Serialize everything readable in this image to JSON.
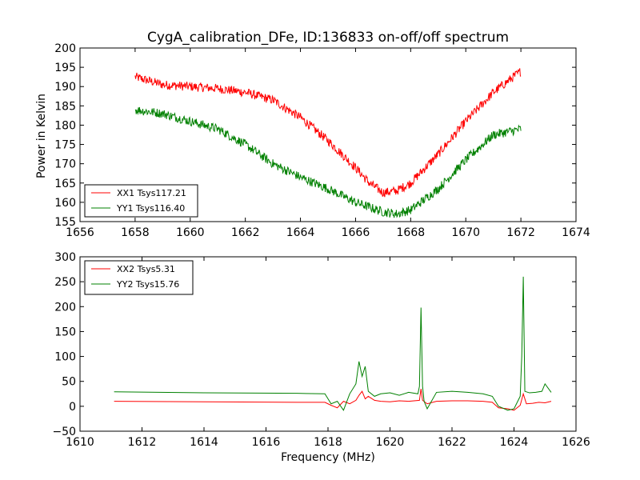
{
  "chart_data": [
    {
      "type": "line",
      "title": "CygA_calibration_DFe, ID:136833 on-off/off spectrum",
      "xlabel": "",
      "ylabel": "Power in Kelvin",
      "xlim": [
        1656,
        1674
      ],
      "ylim": [
        155,
        200
      ],
      "xticks": [
        1656,
        1658,
        1660,
        1662,
        1664,
        1666,
        1668,
        1670,
        1672,
        1674
      ],
      "yticks": [
        155,
        160,
        165,
        170,
        175,
        180,
        185,
        190,
        195,
        200
      ],
      "legend_position": "lower-left",
      "grid": false,
      "noise": 1.0,
      "series": [
        {
          "name": "XX1 Tsys117.21",
          "color": "#ff0000",
          "x": [
            1658.0,
            1659.0,
            1660.0,
            1661.0,
            1662.0,
            1663.0,
            1664.0,
            1665.0,
            1666.0,
            1666.5,
            1667.0,
            1667.5,
            1668.0,
            1669.0,
            1670.0,
            1671.0,
            1672.0
          ],
          "y": [
            192.5,
            190.5,
            190.0,
            189.5,
            188.5,
            186.5,
            182.0,
            176.0,
            169.0,
            165.0,
            162.5,
            163.0,
            165.0,
            172.5,
            181.0,
            188.5,
            194.0
          ]
        },
        {
          "name": "YY1 Tsys116.40",
          "color": "#008000",
          "x": [
            1658.0,
            1659.0,
            1660.0,
            1661.0,
            1662.0,
            1663.0,
            1664.0,
            1665.0,
            1666.0,
            1667.0,
            1667.5,
            1668.0,
            1669.0,
            1670.0,
            1671.0,
            1672.0
          ],
          "y": [
            184.0,
            183.0,
            181.0,
            179.0,
            175.0,
            170.0,
            166.5,
            163.5,
            160.0,
            157.5,
            157.0,
            158.0,
            163.5,
            171.0,
            177.5,
            179.0
          ]
        }
      ]
    },
    {
      "type": "line",
      "title": "",
      "xlabel": "Frequency (MHz)",
      "ylabel": "",
      "xlim": [
        1610,
        1626
      ],
      "ylim": [
        -50,
        300
      ],
      "xticks": [
        1610,
        1612,
        1614,
        1616,
        1618,
        1620,
        1622,
        1624,
        1626
      ],
      "yticks": [
        -50,
        0,
        50,
        100,
        150,
        200,
        250,
        300
      ],
      "legend_position": "upper-left",
      "grid": false,
      "series": [
        {
          "name": "XX2 Tsys5.31",
          "color": "#ff0000",
          "x": [
            1611.1,
            1614.0,
            1617.0,
            1617.9,
            1618.1,
            1618.3,
            1618.5,
            1618.7,
            1618.9,
            1619.0,
            1619.1,
            1619.2,
            1619.3,
            1619.5,
            1619.7,
            1620.0,
            1620.3,
            1620.6,
            1620.95,
            1621.0,
            1621.05,
            1621.2,
            1621.5,
            1622.0,
            1622.5,
            1623.0,
            1623.3,
            1623.5,
            1623.8,
            1624.0,
            1624.2,
            1624.3,
            1624.4,
            1624.6,
            1624.8,
            1625.0,
            1625.2
          ],
          "y": [
            10,
            9,
            8,
            8,
            2,
            -3,
            10,
            5,
            12,
            22,
            30,
            15,
            20,
            12,
            10,
            9,
            11,
            10,
            12,
            35,
            12,
            5,
            10,
            11,
            11,
            10,
            8,
            -3,
            -5,
            -8,
            2,
            25,
            5,
            6,
            8,
            7,
            10
          ]
        },
        {
          "name": "YY2 Tsys15.76",
          "color": "#008000",
          "x": [
            1611.1,
            1614.0,
            1617.0,
            1617.9,
            1618.0,
            1618.1,
            1618.3,
            1618.5,
            1618.7,
            1618.9,
            1619.0,
            1619.1,
            1619.2,
            1619.3,
            1619.5,
            1619.7,
            1620.0,
            1620.3,
            1620.6,
            1620.9,
            1620.95,
            1621.0,
            1621.05,
            1621.1,
            1621.2,
            1621.5,
            1622.0,
            1622.5,
            1623.0,
            1623.3,
            1623.5,
            1623.8,
            1624.0,
            1624.2,
            1624.25,
            1624.3,
            1624.35,
            1624.5,
            1624.7,
            1624.9,
            1625.0,
            1625.2
          ],
          "y": [
            29,
            27,
            26,
            25,
            15,
            5,
            10,
            -8,
            25,
            45,
            90,
            60,
            80,
            30,
            20,
            25,
            27,
            22,
            28,
            25,
            40,
            198,
            40,
            10,
            -5,
            28,
            30,
            28,
            25,
            20,
            0,
            -8,
            -5,
            20,
            100,
            260,
            30,
            27,
            28,
            30,
            45,
            28
          ]
        }
      ]
    }
  ]
}
